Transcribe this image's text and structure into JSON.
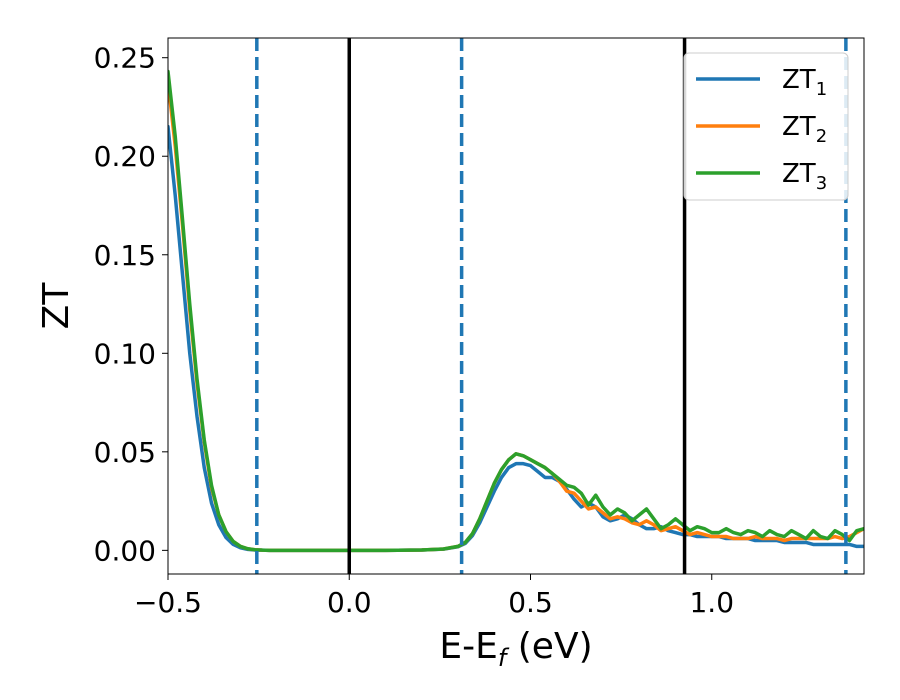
{
  "chart_data": {
    "type": "line",
    "xlabel": "E-E",
    "xlabel_sub": "f",
    "xlabel_unit": " (eV)",
    "ylabel": "ZT",
    "xlim": [
      -0.5,
      1.42
    ],
    "ylim": [
      -0.012,
      0.26
    ],
    "xticks": [
      -0.5,
      0.0,
      0.5,
      1.0
    ],
    "xtick_labels": [
      "−0.5",
      "0.0",
      "0.5",
      "1.0"
    ],
    "yticks": [
      0.0,
      0.05,
      0.1,
      0.15,
      0.2,
      0.25
    ],
    "ytick_labels": [
      "0.00",
      "0.05",
      "0.10",
      "0.15",
      "0.20",
      "0.25"
    ],
    "legend_position": "top-right",
    "grid": false,
    "vertical_lines": [
      {
        "x": -0.255,
        "style": "dashed",
        "color": "#1f77b4"
      },
      {
        "x": 0.0,
        "style": "solid",
        "color": "#000000"
      },
      {
        "x": 0.31,
        "style": "dashed",
        "color": "#1f77b4"
      },
      {
        "x": 0.925,
        "style": "solid",
        "color": "#000000"
      },
      {
        "x": 1.37,
        "style": "dashed",
        "color": "#1f77b4"
      }
    ],
    "x": [
      -0.5,
      -0.48,
      -0.46,
      -0.44,
      -0.42,
      -0.4,
      -0.38,
      -0.36,
      -0.34,
      -0.32,
      -0.3,
      -0.28,
      -0.26,
      -0.24,
      -0.22,
      -0.2,
      -0.1,
      0.0,
      0.1,
      0.2,
      0.26,
      0.3,
      0.32,
      0.34,
      0.36,
      0.38,
      0.4,
      0.42,
      0.44,
      0.46,
      0.48,
      0.5,
      0.52,
      0.54,
      0.56,
      0.58,
      0.6,
      0.62,
      0.64,
      0.66,
      0.68,
      0.7,
      0.72,
      0.74,
      0.76,
      0.78,
      0.8,
      0.82,
      0.84,
      0.86,
      0.88,
      0.9,
      0.92,
      0.94,
      0.96,
      0.98,
      1.0,
      1.02,
      1.04,
      1.06,
      1.08,
      1.1,
      1.12,
      1.14,
      1.16,
      1.18,
      1.2,
      1.22,
      1.24,
      1.26,
      1.28,
      1.3,
      1.32,
      1.34,
      1.36,
      1.38,
      1.4,
      1.42
    ],
    "series": [
      {
        "name": "ZT",
        "name_sub": "1",
        "color": "#1f77b4",
        "values": [
          0.215,
          0.18,
          0.14,
          0.1,
          0.068,
          0.042,
          0.024,
          0.013,
          0.0065,
          0.003,
          0.0013,
          0.0005,
          0.0002,
          0.0001,
          0.0,
          0.0,
          0.0,
          0.0,
          0.0,
          0.0002,
          0.0006,
          0.0018,
          0.0035,
          0.0075,
          0.014,
          0.022,
          0.03,
          0.037,
          0.042,
          0.044,
          0.044,
          0.043,
          0.04,
          0.037,
          0.037,
          0.035,
          0.031,
          0.026,
          0.022,
          0.024,
          0.022,
          0.017,
          0.015,
          0.016,
          0.018,
          0.016,
          0.013,
          0.011,
          0.011,
          0.012,
          0.01,
          0.009,
          0.008,
          0.008,
          0.007,
          0.007,
          0.007,
          0.007,
          0.006,
          0.006,
          0.006,
          0.006,
          0.005,
          0.005,
          0.005,
          0.005,
          0.004,
          0.004,
          0.004,
          0.004,
          0.003,
          0.003,
          0.003,
          0.003,
          0.003,
          0.003,
          0.002,
          0.002
        ]
      },
      {
        "name": "ZT",
        "name_sub": "2",
        "color": "#ff7f0e",
        "values": [
          0.238,
          0.205,
          0.165,
          0.122,
          0.085,
          0.055,
          0.032,
          0.018,
          0.0095,
          0.0045,
          0.002,
          0.0008,
          0.0003,
          0.0001,
          0.0,
          0.0,
          0.0,
          0.0,
          0.0,
          0.0002,
          0.0007,
          0.002,
          0.004,
          0.0085,
          0.016,
          0.025,
          0.034,
          0.041,
          0.046,
          0.049,
          0.048,
          0.046,
          0.044,
          0.042,
          0.039,
          0.035,
          0.03,
          0.029,
          0.025,
          0.021,
          0.022,
          0.019,
          0.016,
          0.017,
          0.016,
          0.014,
          0.013,
          0.015,
          0.013,
          0.01,
          0.011,
          0.012,
          0.01,
          0.008,
          0.009,
          0.008,
          0.007,
          0.007,
          0.007,
          0.006,
          0.006,
          0.006,
          0.007,
          0.006,
          0.006,
          0.006,
          0.005,
          0.006,
          0.006,
          0.006,
          0.006,
          0.006,
          0.006,
          0.007,
          0.006,
          0.007,
          0.009,
          0.011
        ]
      },
      {
        "name": "ZT",
        "name_sub": "3",
        "color": "#2ca02c",
        "values": [
          0.243,
          0.21,
          0.168,
          0.125,
          0.087,
          0.056,
          0.033,
          0.018,
          0.0095,
          0.0045,
          0.002,
          0.0008,
          0.0003,
          0.0001,
          0.0,
          0.0,
          0.0,
          0.0,
          0.0,
          0.0002,
          0.0007,
          0.002,
          0.004,
          0.0085,
          0.016,
          0.025,
          0.034,
          0.041,
          0.046,
          0.049,
          0.048,
          0.046,
          0.044,
          0.042,
          0.039,
          0.036,
          0.033,
          0.032,
          0.029,
          0.023,
          0.028,
          0.022,
          0.018,
          0.021,
          0.019,
          0.015,
          0.018,
          0.021,
          0.016,
          0.011,
          0.013,
          0.016,
          0.013,
          0.01,
          0.012,
          0.011,
          0.009,
          0.009,
          0.011,
          0.009,
          0.008,
          0.01,
          0.009,
          0.007,
          0.01,
          0.008,
          0.007,
          0.01,
          0.008,
          0.006,
          0.01,
          0.007,
          0.006,
          0.01,
          0.008,
          0.005,
          0.01,
          0.011
        ]
      }
    ]
  }
}
